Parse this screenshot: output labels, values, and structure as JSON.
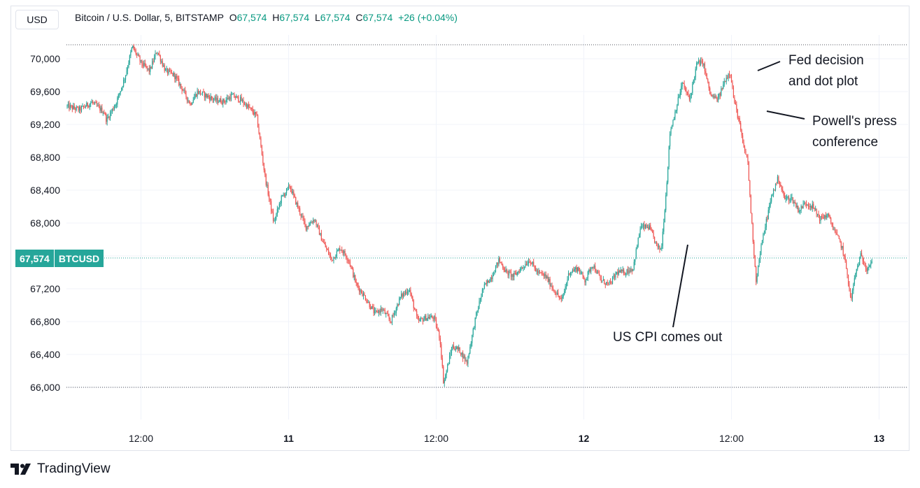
{
  "header": {
    "currency_button": "USD",
    "title": "Bitcoin / U.S. Dollar, 5, BITSTAMP",
    "o_label": "O",
    "o_value": "67,574",
    "h_label": "H",
    "h_value": "67,574",
    "l_label": "L",
    "l_value": "67,574",
    "c_label": "C",
    "c_value": "67,574",
    "change": "+26 (+0.04%)"
  },
  "price_tag": {
    "value": "67,574",
    "symbol": "BTCUSD"
  },
  "annotations": {
    "fed_line1": "Fed decision",
    "fed_line2": "and dot plot",
    "powell_line1": "Powell's press",
    "powell_line2": "conference",
    "cpi": "US CPI comes out"
  },
  "brand": {
    "name": "TradingView"
  },
  "colors": {
    "up": "#26a69a",
    "down": "#ef5350",
    "grid": "#f0f3fa",
    "text": "#131722"
  },
  "chart_data": {
    "type": "candlestick",
    "title": "Bitcoin / U.S. Dollar, 5, BITSTAMP",
    "x_ticks": [
      "12:00",
      "11",
      "12:00",
      "12",
      "12:00",
      "13"
    ],
    "y_ticks": [
      70000,
      69600,
      69200,
      68800,
      68400,
      68000,
      67200,
      66800,
      66400,
      66000
    ],
    "y_tick_labels": [
      "70,000",
      "69,600",
      "69,200",
      "68,800",
      "68,400",
      "68,000",
      "67,200",
      "66,800",
      "66,400",
      "66,000"
    ],
    "ylim": [
      65700,
      70200
    ],
    "xlim_hours": [
      -2,
      54
    ],
    "dashed_levels": [
      70170,
      67574,
      66000
    ],
    "last_price": 67574,
    "path": [
      [
        0,
        69420
      ],
      [
        1,
        69380
      ],
      [
        2,
        69470
      ],
      [
        3,
        69350
      ],
      [
        3.2,
        69250
      ],
      [
        4,
        69470
      ],
      [
        4.7,
        69780
      ],
      [
        5.3,
        70150
      ],
      [
        6,
        69950
      ],
      [
        6.7,
        69850
      ],
      [
        7.3,
        70100
      ],
      [
        8,
        69850
      ],
      [
        8.7,
        69800
      ],
      [
        9.3,
        69650
      ],
      [
        10,
        69450
      ],
      [
        10.6,
        69600
      ],
      [
        11.3,
        69550
      ],
      [
        12,
        69500
      ],
      [
        12.7,
        69480
      ],
      [
        13.4,
        69550
      ],
      [
        14.1,
        69500
      ],
      [
        14.8,
        69400
      ],
      [
        15.4,
        69300
      ],
      [
        16.1,
        68550
      ],
      [
        16.8,
        68000
      ],
      [
        17.4,
        68300
      ],
      [
        18.1,
        68450
      ],
      [
        18.6,
        68250
      ],
      [
        19.4,
        67950
      ],
      [
        20.1,
        68050
      ],
      [
        20.7,
        67800
      ],
      [
        21.5,
        67550
      ],
      [
        22.2,
        67700
      ],
      [
        22.9,
        67550
      ],
      [
        23.5,
        67250
      ],
      [
        24.2,
        67100
      ],
      [
        25.0,
        66900
      ],
      [
        25.6,
        66950
      ],
      [
        26.3,
        66800
      ],
      [
        27.1,
        67100
      ],
      [
        27.8,
        67200
      ],
      [
        28.5,
        66800
      ],
      [
        29.2,
        66850
      ],
      [
        29.8,
        66850
      ],
      [
        30.3,
        66600
      ],
      [
        30.6,
        66050
      ],
      [
        31.3,
        66500
      ],
      [
        31.9,
        66450
      ],
      [
        32.5,
        66300
      ],
      [
        33.2,
        66850
      ],
      [
        33.8,
        67200
      ],
      [
        34.5,
        67350
      ],
      [
        35.1,
        67550
      ],
      [
        35.7,
        67400
      ],
      [
        36.3,
        67350
      ],
      [
        36.9,
        67450
      ],
      [
        37.6,
        67550
      ],
      [
        38.2,
        67400
      ],
      [
        38.9,
        67350
      ],
      [
        39.5,
        67200
      ],
      [
        40.2,
        67050
      ],
      [
        40.8,
        67400
      ],
      [
        41.5,
        67450
      ],
      [
        42.1,
        67300
      ],
      [
        42.7,
        67500
      ],
      [
        43.4,
        67300
      ],
      [
        44.1,
        67250
      ],
      [
        44.7,
        67400
      ],
      [
        45.3,
        67400
      ],
      [
        46.0,
        67450
      ],
      [
        46.6,
        67950
      ],
      [
        47.3,
        67950
      ],
      [
        48.0,
        67700
      ],
      [
        48.3,
        67680
      ],
      [
        48.7,
        68400
      ],
      [
        49.0,
        69100
      ],
      [
        49.5,
        69400
      ],
      [
        50.0,
        69700
      ],
      [
        50.6,
        69500
      ],
      [
        51.2,
        69950
      ],
      [
        51.7,
        69950
      ],
      [
        52.3,
        69550
      ],
      [
        52.9,
        69500
      ],
      [
        53.5,
        69750
      ],
      [
        53.9,
        69850
      ],
      [
        54.2,
        69500
      ],
      [
        54.6,
        69250
      ],
      [
        55.0,
        68900
      ],
      [
        55.3,
        68800
      ],
      [
        55.6,
        68100
      ],
      [
        56.0,
        67300
      ],
      [
        56.4,
        67700
      ],
      [
        56.8,
        68000
      ],
      [
        57.3,
        68350
      ],
      [
        57.8,
        68550
      ],
      [
        58.3,
        68300
      ],
      [
        58.9,
        68300
      ],
      [
        59.5,
        68150
      ],
      [
        60.0,
        68250
      ],
      [
        60.6,
        68200
      ],
      [
        61.2,
        68050
      ],
      [
        61.8,
        68100
      ],
      [
        62.4,
        67900
      ],
      [
        63.0,
        67700
      ],
      [
        63.4,
        67400
      ],
      [
        63.7,
        67050
      ],
      [
        64.1,
        67400
      ],
      [
        64.5,
        67600
      ],
      [
        65.0,
        67450
      ],
      [
        65.5,
        67550
      ]
    ]
  }
}
